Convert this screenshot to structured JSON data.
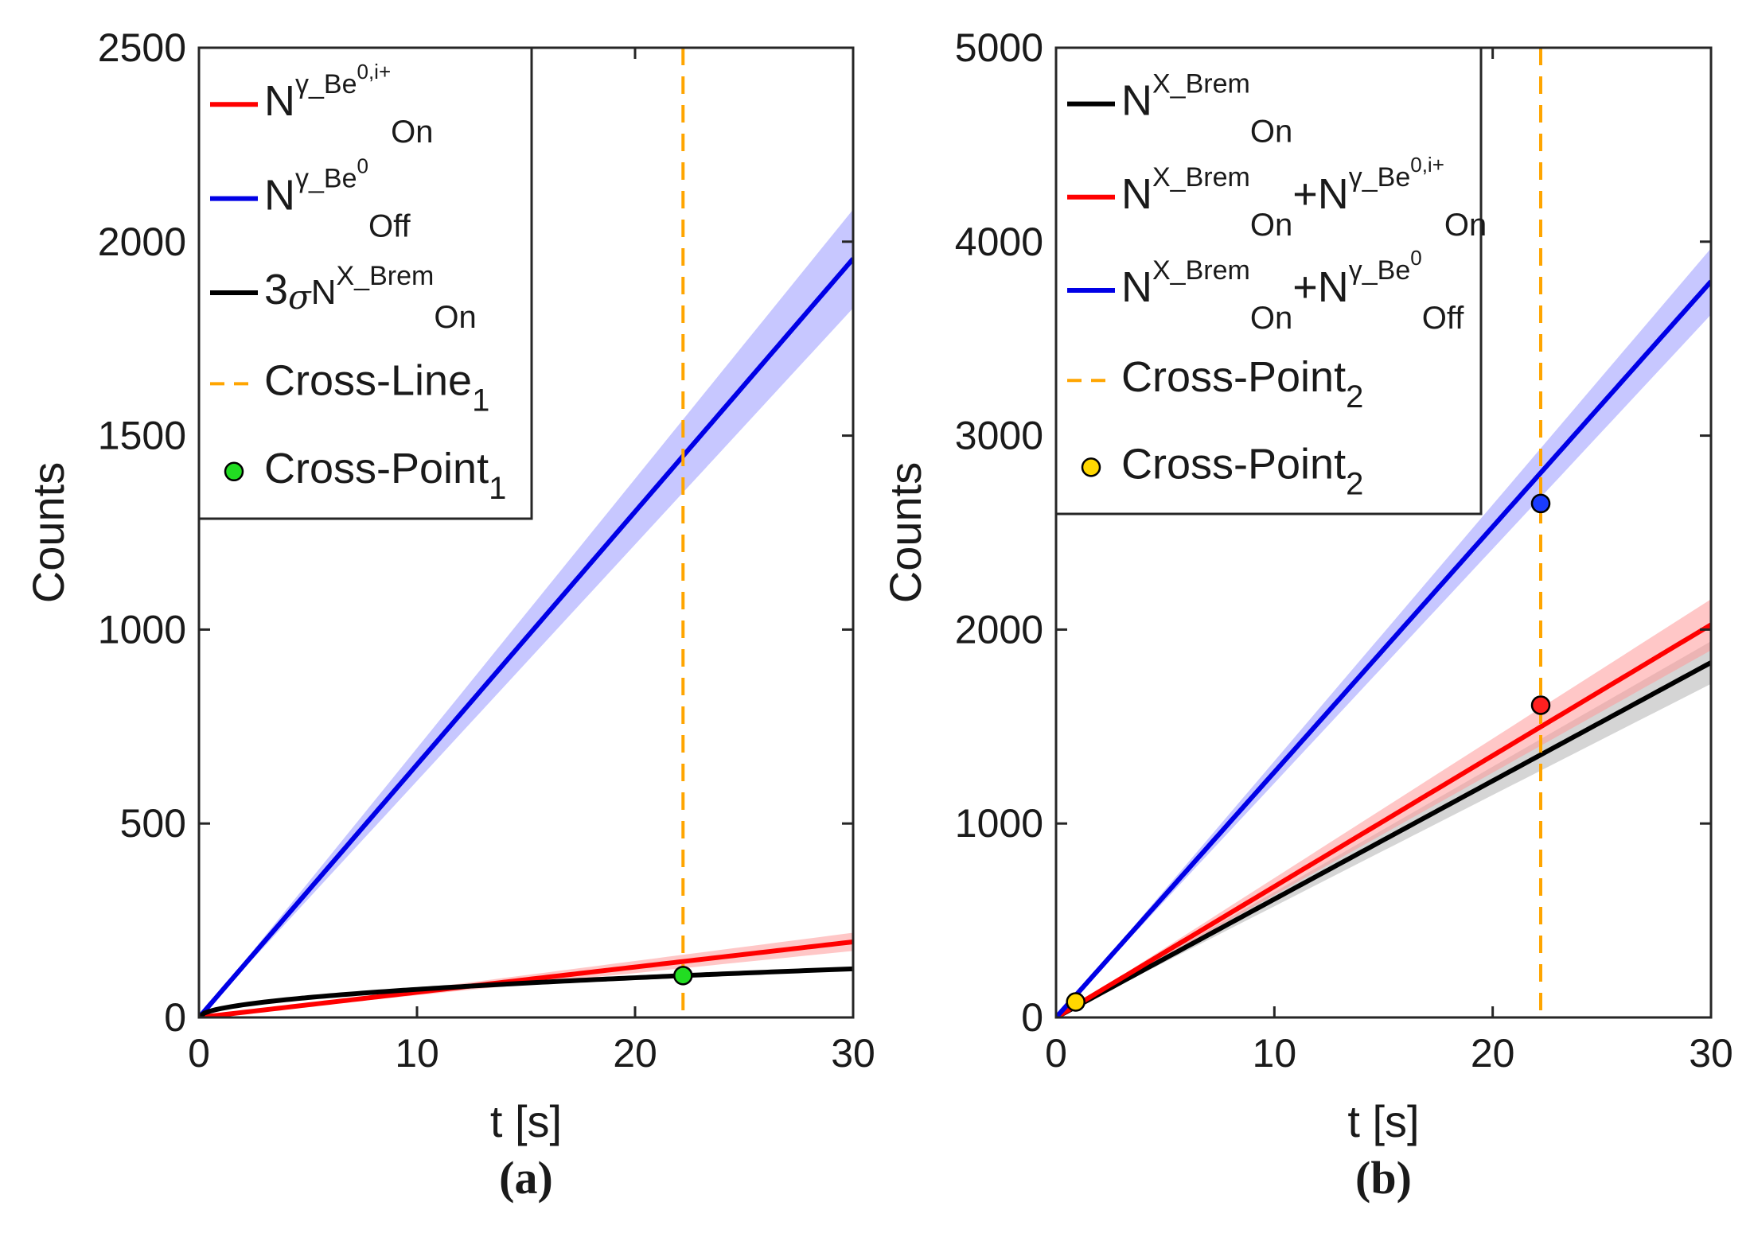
{
  "colors": {
    "red": "#ff0000",
    "blue": "#0000e6",
    "black": "#000000",
    "orange": "#ffa500",
    "red_band": "#ff9999",
    "blue_band": "#9999ff",
    "black_band": "#b3b3b3",
    "green_marker": "#22dd22",
    "yellow_marker": "#ffd700",
    "blue_marker": "#1a3cff",
    "red_marker": "#ff2020"
  },
  "chart_data": [
    {
      "id": "a",
      "type": "line",
      "caption": "(a)",
      "xlabel": "t [s]",
      "ylabel": "Counts",
      "xlim": [
        0,
        30
      ],
      "ylim": [
        0,
        2500
      ],
      "xticks": [
        0,
        10,
        20,
        30
      ],
      "xtick_labels": [
        "0",
        "10",
        "20",
        "30"
      ],
      "yticks": [
        0,
        500,
        1000,
        1500,
        2000,
        2500
      ],
      "ytick_labels": [
        "0",
        "500",
        "1000",
        "1500",
        "2000",
        "2500"
      ],
      "grid": false,
      "legend_position": "top-left",
      "series": [
        {
          "name": "N_On^{γ_Be^{0,i+}}",
          "color": "red",
          "band_color": "red_band",
          "model": "linear",
          "slope": 6.5,
          "band_rel": 0.12,
          "label_parts": {
            "base": "N",
            "sup": "γ_Be",
            "supsup": "0,i+",
            "sub": "On"
          }
        },
        {
          "name": "N_Off^{γ_Be^0}",
          "color": "blue",
          "band_color": "blue_band",
          "model": "linear",
          "slope": 65.2,
          "band_rel": 0.065,
          "label_parts": {
            "base": "N",
            "sup": "γ_Be",
            "supsup": "0",
            "sub": "Off"
          }
        },
        {
          "name": "3σ_{N_On^{X_Brem}}",
          "color": "black",
          "band_color": null,
          "model": "sqrt",
          "coef": 22.9,
          "band_rel": 0,
          "label_parts": {
            "prefix": "3",
            "greek": "σ",
            "base": "N",
            "sup": "X_Brem",
            "sub": "On"
          }
        }
      ],
      "vline": {
        "name": "Cross-Line",
        "sub": "1",
        "x": 22.2,
        "color": "orange"
      },
      "points": [
        {
          "name": "Cross-Point",
          "sub": "1",
          "x": 22.2,
          "y": 108,
          "color": "green_marker",
          "in_legend": true
        }
      ]
    },
    {
      "id": "b",
      "type": "line",
      "caption": "(b)",
      "xlabel": "t [s]",
      "ylabel": "Counts",
      "xlim": [
        0,
        30
      ],
      "ylim": [
        0,
        5000
      ],
      "xticks": [
        0,
        10,
        20,
        30
      ],
      "xtick_labels": [
        "0",
        "10",
        "20",
        "30"
      ],
      "yticks": [
        0,
        1000,
        2000,
        3000,
        4000,
        5000
      ],
      "ytick_labels": [
        "0",
        "1000",
        "2000",
        "3000",
        "4000",
        "5000"
      ],
      "grid": false,
      "legend_position": "top-left",
      "series": [
        {
          "name": "N_On^{X_Brem}",
          "color": "black",
          "band_color": "black_band",
          "model": "linear",
          "slope": 61,
          "band_rel": 0.06,
          "label_parts": {
            "base": "N",
            "sup": "X_Brem",
            "sub": "On"
          }
        },
        {
          "name": "N_On^{X_Brem}+N_On^{γ_Be^{0,i+}}",
          "color": "red",
          "band_color": "red_band",
          "model": "linear",
          "slope": 67.5,
          "band_rel": 0.065,
          "label_parts": {
            "base": "N",
            "sup": "X_Brem",
            "sub": "On",
            "plus_base": "N",
            "plus_sup": "γ_Be",
            "plus_supsup": "0,i+",
            "plus_sub": "On"
          }
        },
        {
          "name": "N_On^{X_Brem}+N_Off^{γ_Be^0}",
          "color": "blue",
          "band_color": "blue_band",
          "model": "linear",
          "slope": 126.5,
          "band_rel": 0.045,
          "label_parts": {
            "base": "N",
            "sup": "X_Brem",
            "sub": "On",
            "plus_base": "N",
            "plus_sup": "γ_Be",
            "plus_supsup": "0",
            "plus_sub": "Off"
          }
        }
      ],
      "vline": {
        "name": "Cross-Point",
        "sub": "2",
        "x": 22.2,
        "color": "orange"
      },
      "points": [
        {
          "name": "Cross-Point",
          "sub": "2",
          "x": 0.9,
          "y": 80,
          "color": "yellow_marker",
          "in_legend": true
        },
        {
          "name": "",
          "sub": "",
          "x": 22.2,
          "y": 2650,
          "color": "blue_marker",
          "in_legend": false
        },
        {
          "name": "",
          "sub": "",
          "x": 22.2,
          "y": 1610,
          "color": "red_marker",
          "in_legend": false
        }
      ]
    }
  ]
}
